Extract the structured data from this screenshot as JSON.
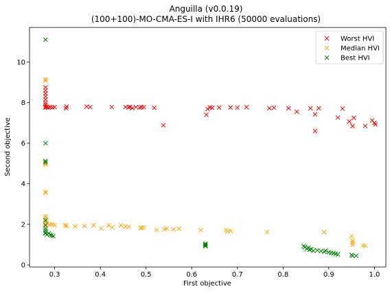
{
  "chart_data": {
    "type": "scatter",
    "title": "Anguilla (v0.0.19)",
    "subtitle": "(100+100)-MO-CMA-ES-I with IHR6 (50000 evaluations)",
    "xlabel": "First objective",
    "ylabel": "Second objective",
    "xlim": [
      0.245,
      1.025
    ],
    "ylim": [
      -0.1,
      11.7
    ],
    "xticks": [
      "0.3",
      "0.4",
      "0.5",
      "0.6",
      "0.7",
      "0.8",
      "0.9",
      "1.0"
    ],
    "yticks": [
      "0",
      "2",
      "4",
      "6",
      "8",
      "10"
    ],
    "grid": false,
    "legend_position": "top-right",
    "marker": "x",
    "series": [
      {
        "name": "Worst HVI",
        "color": "#ff0000",
        "points": [
          [
            0.28,
            8.75
          ],
          [
            0.28,
            8.6
          ],
          [
            0.28,
            8.45
          ],
          [
            0.28,
            8.3
          ],
          [
            0.28,
            8.15
          ],
          [
            0.28,
            8.0
          ],
          [
            0.28,
            7.9
          ],
          [
            0.28,
            7.8
          ],
          [
            0.28,
            7.75
          ],
          [
            0.283,
            7.78
          ],
          [
            0.286,
            7.75
          ],
          [
            0.29,
            7.78
          ],
          [
            0.295,
            7.76
          ],
          [
            0.3,
            7.78
          ],
          [
            0.325,
            7.72
          ],
          [
            0.326,
            7.8
          ],
          [
            0.37,
            7.8
          ],
          [
            0.378,
            7.78
          ],
          [
            0.425,
            7.78
          ],
          [
            0.455,
            7.78
          ],
          [
            0.462,
            7.76
          ],
          [
            0.465,
            7.79
          ],
          [
            0.47,
            7.72
          ],
          [
            0.478,
            7.78
          ],
          [
            0.486,
            7.75
          ],
          [
            0.49,
            7.78
          ],
          [
            0.495,
            7.77
          ],
          [
            0.518,
            7.74
          ],
          [
            0.538,
            6.88
          ],
          [
            0.632,
            7.4
          ],
          [
            0.635,
            7.68
          ],
          [
            0.64,
            7.76
          ],
          [
            0.645,
            7.74
          ],
          [
            0.66,
            7.76
          ],
          [
            0.685,
            7.76
          ],
          [
            0.7,
            7.75
          ],
          [
            0.72,
            7.77
          ],
          [
            0.77,
            7.72
          ],
          [
            0.78,
            7.75
          ],
          [
            0.812,
            7.72
          ],
          [
            0.83,
            7.55
          ],
          [
            0.86,
            7.72
          ],
          [
            0.87,
            7.42
          ],
          [
            0.87,
            6.6
          ],
          [
            0.878,
            7.72
          ],
          [
            0.92,
            7.26
          ],
          [
            0.93,
            7.7
          ],
          [
            0.945,
            7.06
          ],
          [
            0.952,
            6.84
          ],
          [
            0.955,
            7.25
          ],
          [
            0.98,
            6.85
          ],
          [
            0.995,
            7.12
          ],
          [
            1.0,
            7.0
          ],
          [
            1.002,
            6.92
          ]
        ]
      },
      {
        "name": "Median HVI",
        "color": "#ffa500",
        "points": [
          [
            0.28,
            9.15
          ],
          [
            0.28,
            9.08
          ],
          [
            0.28,
            5.0
          ],
          [
            0.28,
            4.95
          ],
          [
            0.28,
            3.6
          ],
          [
            0.28,
            3.55
          ],
          [
            0.28,
            2.4
          ],
          [
            0.28,
            2.3
          ],
          [
            0.28,
            2.2
          ],
          [
            0.28,
            2.1
          ],
          [
            0.28,
            2.0
          ],
          [
            0.283,
            2.05
          ],
          [
            0.29,
            1.98
          ],
          [
            0.295,
            2.0
          ],
          [
            0.3,
            1.96
          ],
          [
            0.323,
            1.95
          ],
          [
            0.326,
            1.92
          ],
          [
            0.345,
            1.9
          ],
          [
            0.365,
            1.92
          ],
          [
            0.385,
            1.95
          ],
          [
            0.402,
            1.8
          ],
          [
            0.418,
            1.95
          ],
          [
            0.426,
            1.85
          ],
          [
            0.445,
            1.95
          ],
          [
            0.455,
            1.9
          ],
          [
            0.462,
            1.88
          ],
          [
            0.488,
            1.82
          ],
          [
            0.49,
            1.84
          ],
          [
            0.495,
            1.85
          ],
          [
            0.523,
            1.72
          ],
          [
            0.54,
            1.75
          ],
          [
            0.545,
            1.8
          ],
          [
            0.56,
            1.75
          ],
          [
            0.572,
            1.78
          ],
          [
            0.62,
            1.72
          ],
          [
            0.675,
            1.72
          ],
          [
            0.678,
            1.65
          ],
          [
            0.685,
            1.68
          ],
          [
            0.765,
            1.62
          ],
          [
            0.89,
            1.62
          ],
          [
            0.95,
            1.42
          ],
          [
            0.952,
            1.2
          ],
          [
            0.952,
            1.1
          ],
          [
            0.952,
            1.0
          ],
          [
            0.975,
            0.95
          ],
          [
            0.98,
            0.95
          ]
        ]
      },
      {
        "name": "Best HVI",
        "color": "#008000",
        "points": [
          [
            0.28,
            11.1
          ],
          [
            0.28,
            6.0
          ],
          [
            0.28,
            5.12
          ],
          [
            0.28,
            5.06
          ],
          [
            0.28,
            2.2
          ],
          [
            0.28,
            1.95
          ],
          [
            0.28,
            1.8
          ],
          [
            0.28,
            1.7
          ],
          [
            0.28,
            1.6
          ],
          [
            0.28,
            1.55
          ],
          [
            0.283,
            1.5
          ],
          [
            0.287,
            1.55
          ],
          [
            0.29,
            1.48
          ],
          [
            0.293,
            1.45
          ],
          [
            0.297,
            1.42
          ],
          [
            0.63,
            1.05
          ],
          [
            0.63,
            1.0
          ],
          [
            0.63,
            0.95
          ],
          [
            0.63,
            0.92
          ],
          [
            0.845,
            0.92
          ],
          [
            0.848,
            0.88
          ],
          [
            0.852,
            0.8
          ],
          [
            0.855,
            0.85
          ],
          [
            0.858,
            0.75
          ],
          [
            0.862,
            0.78
          ],
          [
            0.866,
            0.7
          ],
          [
            0.875,
            0.72
          ],
          [
            0.883,
            0.68
          ],
          [
            0.89,
            0.65
          ],
          [
            0.893,
            0.7
          ],
          [
            0.9,
            0.62
          ],
          [
            0.905,
            0.6
          ],
          [
            0.91,
            0.58
          ],
          [
            0.915,
            0.55
          ],
          [
            0.92,
            0.52
          ],
          [
            0.95,
            0.5
          ],
          [
            0.952,
            0.45
          ],
          [
            0.96,
            0.45
          ]
        ]
      }
    ]
  }
}
